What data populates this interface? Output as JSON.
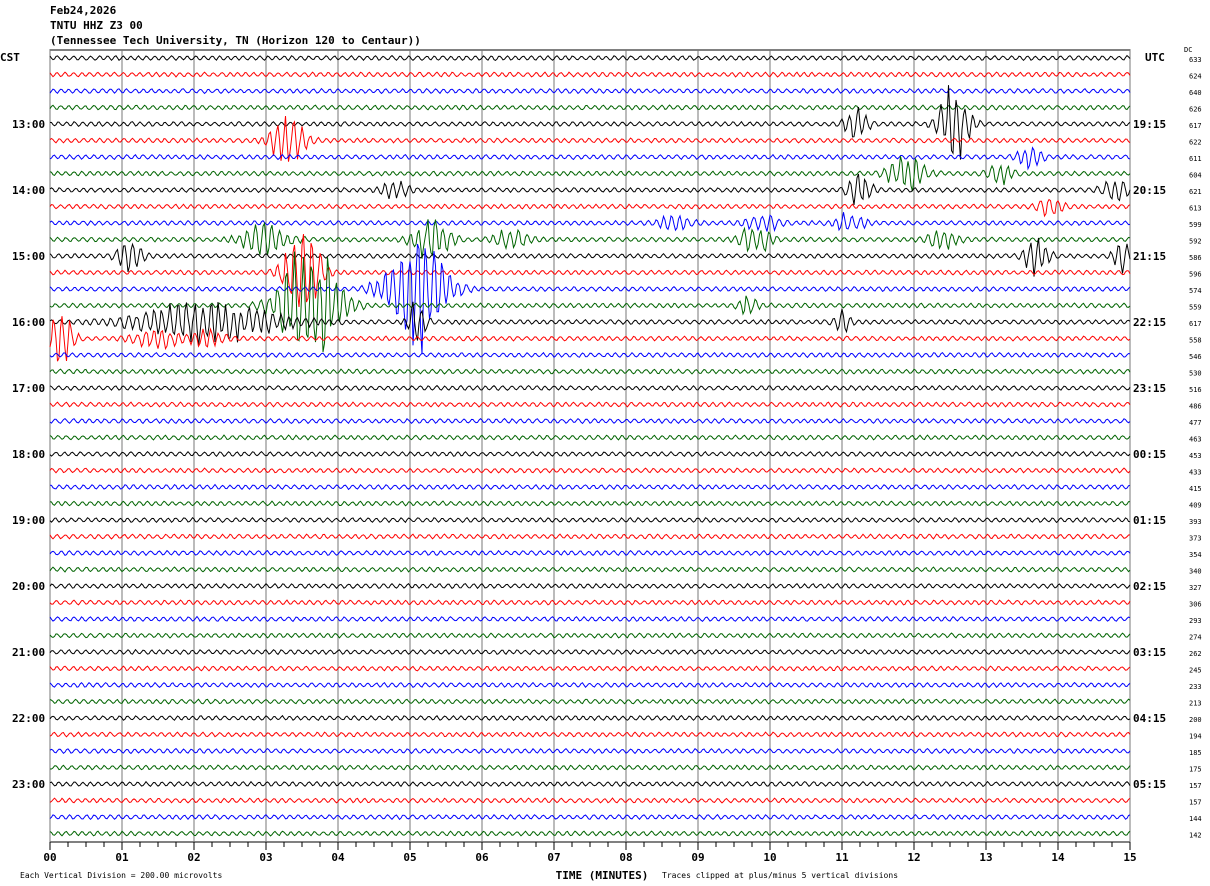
{
  "header": {
    "date": "Feb24,2026",
    "station": "TNTU HHZ Z3 00",
    "location": "(Tennessee Tech University, TN (Horizon 120 to Centaur))"
  },
  "chart_data": {
    "type": "line",
    "subtype": "helicorder",
    "left_axis_title": "CST",
    "right_axis_title": "UTC",
    "dc_label": "DC",
    "xlabel": "TIME (MINUTES)",
    "xlim": [
      0,
      15
    ],
    "x_ticks": [
      "00",
      "01",
      "02",
      "03",
      "04",
      "05",
      "06",
      "07",
      "08",
      "09",
      "10",
      "11",
      "12",
      "13",
      "14",
      "15"
    ],
    "traces_per_hour": 4,
    "minutes_per_trace": 15,
    "trace_colors": [
      "#000000",
      "#ff0000",
      "#0000ff",
      "#006400"
    ],
    "left_labels": [
      "",
      "13:00",
      "14:00",
      "15:00",
      "16:00",
      "17:00",
      "18:00",
      "19:00",
      "20:00",
      "21:00",
      "22:00",
      "23:00"
    ],
    "right_labels": [
      "",
      "19:15",
      "20:15",
      "21:15",
      "22:15",
      "23:15",
      "00:15",
      "01:15",
      "02:15",
      "03:15",
      "04:15",
      "05:15"
    ],
    "dc_values": [
      "633",
      "624",
      "640",
      "626",
      "617",
      "622",
      "611",
      "604",
      "621",
      "613",
      "599",
      "592",
      "586",
      "596",
      "574",
      "559",
      "617",
      "558",
      "546",
      "530",
      "516",
      "486",
      "477",
      "463",
      "453",
      "433",
      "415",
      "409",
      "393",
      "373",
      "354",
      "340",
      "327",
      "306",
      "293",
      "274",
      "262",
      "245",
      "233",
      "213",
      "200",
      "194",
      "185",
      "175",
      "157",
      "157",
      "144",
      "142"
    ],
    "events": [
      {
        "trace": 4,
        "minute": 11.2,
        "duration": 0.4,
        "amplitude": 0.8
      },
      {
        "trace": 4,
        "minute": 12.55,
        "duration": 0.5,
        "amplitude": 2.0
      },
      {
        "trace": 5,
        "minute": 3.3,
        "duration": 0.6,
        "amplitude": 1.2
      },
      {
        "trace": 6,
        "minute": 13.6,
        "duration": 0.4,
        "amplitude": 0.6
      },
      {
        "trace": 7,
        "minute": 11.9,
        "duration": 0.6,
        "amplitude": 1.0
      },
      {
        "trace": 7,
        "minute": 13.2,
        "duration": 0.4,
        "amplitude": 0.5
      },
      {
        "trace": 8,
        "minute": 4.8,
        "duration": 0.5,
        "amplitude": 0.4
      },
      {
        "trace": 8,
        "minute": 11.25,
        "duration": 0.4,
        "amplitude": 0.8
      },
      {
        "trace": 8,
        "minute": 14.8,
        "duration": 0.5,
        "amplitude": 0.5
      },
      {
        "trace": 9,
        "minute": 13.9,
        "duration": 0.4,
        "amplitude": 0.6
      },
      {
        "trace": 10,
        "minute": 8.7,
        "duration": 0.5,
        "amplitude": 0.5
      },
      {
        "trace": 10,
        "minute": 9.9,
        "duration": 0.6,
        "amplitude": 0.4
      },
      {
        "trace": 10,
        "minute": 11.1,
        "duration": 0.5,
        "amplitude": 0.5
      },
      {
        "trace": 11,
        "minute": 3.0,
        "duration": 0.8,
        "amplitude": 0.8
      },
      {
        "trace": 11,
        "minute": 5.3,
        "duration": 0.6,
        "amplitude": 1.3
      },
      {
        "trace": 11,
        "minute": 6.4,
        "duration": 0.6,
        "amplitude": 0.5
      },
      {
        "trace": 11,
        "minute": 9.8,
        "duration": 0.5,
        "amplitude": 0.8
      },
      {
        "trace": 11,
        "minute": 12.4,
        "duration": 0.5,
        "amplitude": 0.5
      },
      {
        "trace": 12,
        "minute": 1.1,
        "duration": 0.4,
        "amplitude": 0.9
      },
      {
        "trace": 12,
        "minute": 13.7,
        "duration": 0.4,
        "amplitude": 1.0
      },
      {
        "trace": 12,
        "minute": 14.9,
        "duration": 0.3,
        "amplitude": 0.8
      },
      {
        "trace": 13,
        "minute": 3.5,
        "duration": 0.6,
        "amplitude": 2.5
      },
      {
        "trace": 14,
        "minute": 5.1,
        "duration": 1.0,
        "amplitude": 3.3
      },
      {
        "trace": 15,
        "minute": 3.6,
        "duration": 1.0,
        "amplitude": 3.2
      },
      {
        "trace": 15,
        "minute": 9.7,
        "duration": 0.3,
        "amplitude": 0.5
      },
      {
        "trace": 16,
        "minute": 2.2,
        "duration": 2.4,
        "amplitude": 1.0
      },
      {
        "trace": 16,
        "minute": 5.1,
        "duration": 0.3,
        "amplitude": 1.2
      },
      {
        "trace": 16,
        "minute": 11.0,
        "duration": 0.3,
        "amplitude": 0.5
      },
      {
        "trace": 17,
        "minute": 0.15,
        "duration": 0.4,
        "amplitude": 1.6
      },
      {
        "trace": 17,
        "minute": 1.5,
        "duration": 0.8,
        "amplitude": 0.5
      },
      {
        "trace": 17,
        "minute": 2.2,
        "duration": 0.6,
        "amplitude": 0.4
      }
    ]
  },
  "footer": {
    "scale_note": "Each Vertical Division =  200.00 microvolts",
    "clip_note": "Traces clipped at plus/minus 5 vertical divisions"
  }
}
